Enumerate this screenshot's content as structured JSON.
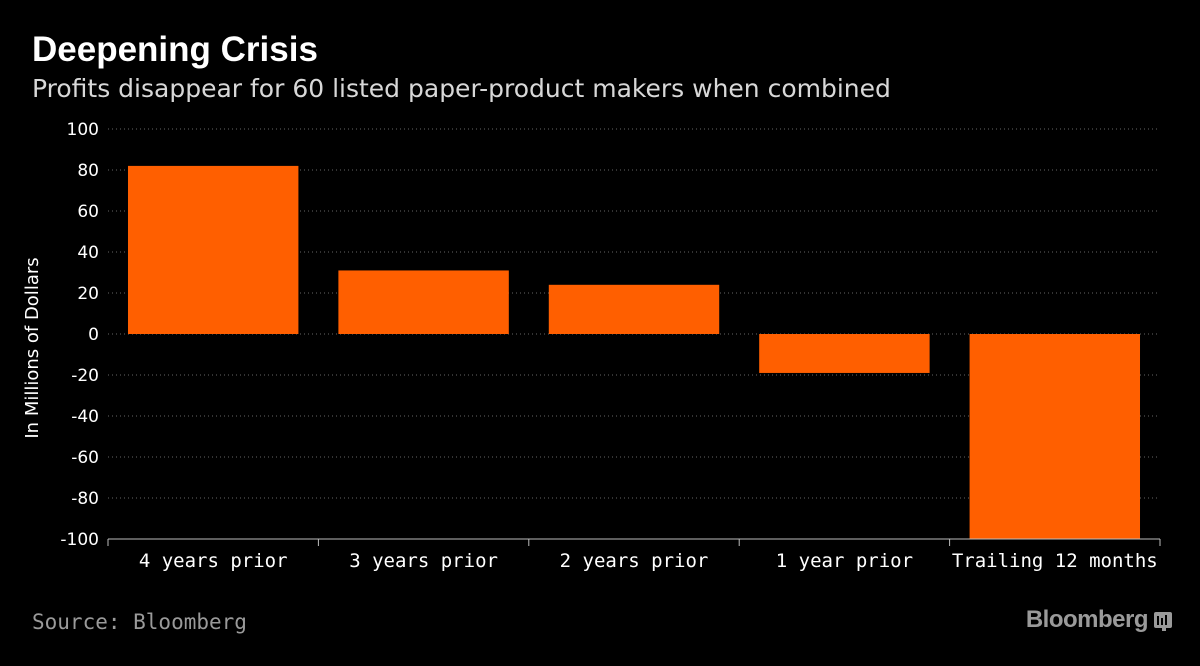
{
  "chart_data": {
    "type": "bar",
    "title": "Deepening Crisis",
    "subtitle": "Profits disappear for 60 listed paper-product makers when combined",
    "categories": [
      "4 years prior",
      "3 years prior",
      "2 years prior",
      "1 year prior",
      "Trailing 12 months"
    ],
    "values": [
      82,
      31,
      24,
      -19,
      -100
    ],
    "ylabel": "In Millions of Dollars",
    "xlabel": "",
    "ylim": [
      -100,
      100
    ],
    "yticks": [
      100,
      80,
      60,
      40,
      20,
      0,
      -20,
      -40,
      -60,
      -80,
      -100
    ],
    "grid": true,
    "bar_color": "#ff5f00"
  },
  "footer": {
    "source": "Source: Bloomberg",
    "brand": "Bloomberg",
    "brand_icon": "bloomberg-bars-icon"
  },
  "colors": {
    "background": "#000000",
    "text": "#ffffff",
    "muted": "#9a9a9a",
    "grid": "#666666",
    "bar": "#ff5f00"
  }
}
